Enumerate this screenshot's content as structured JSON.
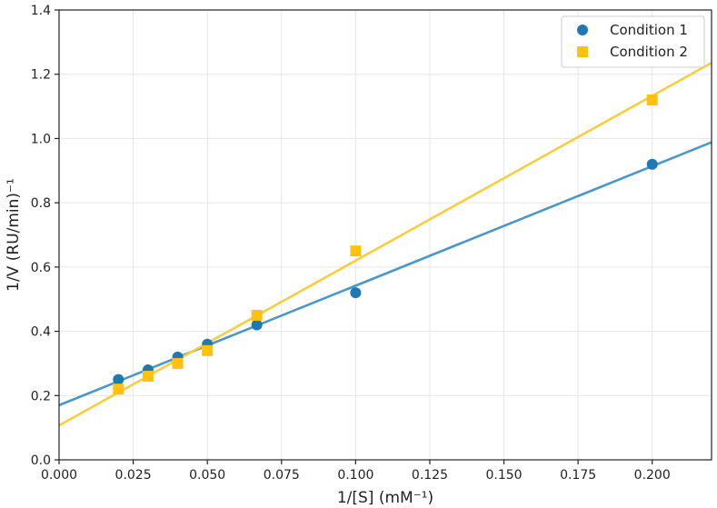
{
  "chart_data": {
    "type": "scatter",
    "title": "",
    "xlabel": "1/[S] (mM⁻¹)",
    "ylabel": "1/V (RU/min)⁻¹",
    "xlim": [
      0.0,
      0.22
    ],
    "ylim": [
      0.0,
      1.4
    ],
    "xticks": [
      0.0,
      0.025,
      0.05,
      0.075,
      0.1,
      0.125,
      0.15,
      0.175,
      0.2
    ],
    "xtick_labels": [
      "0.000",
      "0.025",
      "0.050",
      "0.075",
      "0.100",
      "0.125",
      "0.150",
      "0.175",
      "0.200"
    ],
    "yticks": [
      0.0,
      0.2,
      0.4,
      0.6,
      0.8,
      1.0,
      1.2,
      1.4
    ],
    "ytick_labels": [
      "0.0",
      "0.2",
      "0.4",
      "0.6",
      "0.8",
      "1.0",
      "1.2",
      "1.4"
    ],
    "grid": true,
    "legend_position": "top-right",
    "series": [
      {
        "name": "Condition 1",
        "marker": "circle",
        "color": "#1f77b4",
        "line_color": "#4a97c9",
        "x": [
          0.02,
          0.03,
          0.04,
          0.05,
          0.0667,
          0.1,
          0.2
        ],
        "y": [
          0.25,
          0.28,
          0.32,
          0.36,
          0.42,
          0.52,
          0.92
        ],
        "fit": {
          "intercept": 0.17,
          "slope": 3.72
        }
      },
      {
        "name": "Condition 2",
        "marker": "square",
        "color": "#ffc20e",
        "line_color": "#f7ce3e",
        "x": [
          0.02,
          0.03,
          0.04,
          0.05,
          0.0667,
          0.1,
          0.2
        ],
        "y": [
          0.22,
          0.26,
          0.3,
          0.34,
          0.45,
          0.65,
          1.12
        ],
        "fit": {
          "intercept": 0.107,
          "slope": 5.13
        }
      }
    ]
  }
}
